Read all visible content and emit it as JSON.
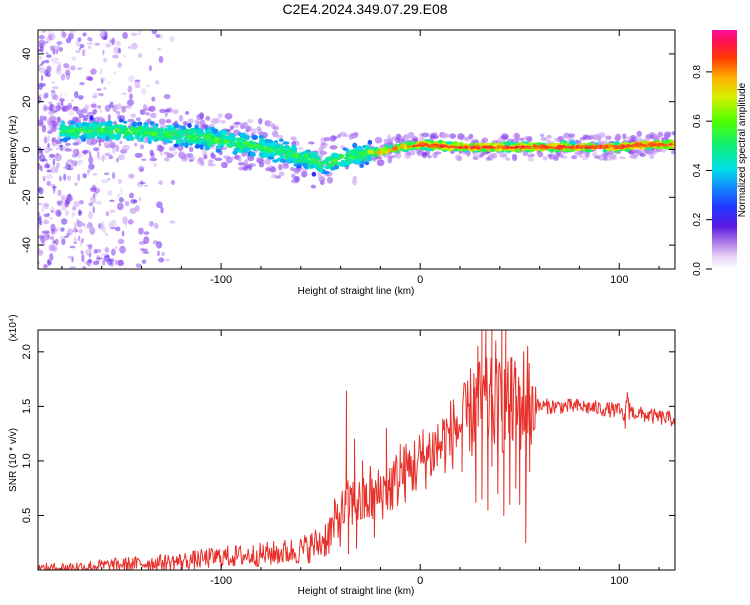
{
  "figure_title": "C2E4.2024.349.07.29.E08",
  "colors": {
    "snr_line": "#e8302a",
    "axis": "#000000"
  },
  "chart_data": [
    {
      "type": "heatmap",
      "name": "spectrogram",
      "xlabel": "Height of straight line (km)",
      "ylabel": "Frequency (Hz)",
      "xlim": [
        -192,
        128
      ],
      "ylim": [
        -50,
        50
      ],
      "xticks": [
        -100,
        0,
        100
      ],
      "yticks": [
        -40,
        -20,
        0,
        20,
        40
      ],
      "ridge": {
        "x": [
          -180,
          -160,
          -140,
          -120,
          -100,
          -80,
          -60,
          -50,
          -40,
          -30,
          -20,
          -10,
          0,
          20,
          40,
          60,
          80,
          100,
          110,
          128
        ],
        "freq": [
          8,
          8,
          7,
          6,
          4,
          1,
          -3,
          -6,
          -4,
          -2,
          -1,
          1,
          2,
          1,
          1,
          1,
          1,
          1,
          2,
          2
        ]
      },
      "colorbar": {
        "label": "Normalized spectral amplitude",
        "ticks": [
          "0.0",
          "0.2",
          "0.4",
          "0.6",
          "0.8"
        ],
        "tick_values": [
          0.0,
          0.2,
          0.4,
          0.6,
          0.8
        ],
        "range": [
          0.0,
          0.97
        ]
      }
    },
    {
      "type": "line",
      "name": "snr",
      "xlabel": "Height of straight line (km)",
      "ylabel": "SNR (10 * v/v)",
      "scale_label": "(x10⁴)",
      "xlim": [
        -192,
        128
      ],
      "ylim": [
        0,
        2.2
      ],
      "xticks": [
        -100,
        0,
        100
      ],
      "yticks": [
        0.5,
        1.0,
        1.5,
        2.0
      ],
      "ytick_labels": [
        "0.5",
        "1.0",
        "1.5",
        "2.0"
      ],
      "envelope": {
        "x": [
          -192,
          -170,
          -150,
          -120,
          -100,
          -80,
          -60,
          -50,
          -45,
          -40,
          -35,
          -30,
          -20,
          -10,
          0,
          10,
          20,
          25,
          30,
          35,
          40,
          45,
          50,
          55,
          60,
          70,
          80,
          90,
          100,
          103,
          104,
          106,
          110,
          120,
          128
        ],
        "y": [
          0.01,
          0.03,
          0.05,
          0.08,
          0.12,
          0.14,
          0.18,
          0.25,
          0.35,
          0.5,
          0.62,
          0.6,
          0.7,
          0.85,
          1.0,
          1.15,
          1.32,
          1.42,
          1.5,
          1.5,
          1.5,
          1.5,
          1.52,
          1.52,
          1.5,
          1.5,
          1.5,
          1.48,
          1.46,
          1.4,
          1.6,
          1.45,
          1.43,
          1.4,
          1.38
        ]
      },
      "spikes": [
        {
          "x": -37,
          "y": 1.64
        },
        {
          "x": -33,
          "y": 1.2
        },
        {
          "x": -29,
          "y": 1.0
        },
        {
          "x": -25,
          "y": 0.95
        },
        {
          "x": -17,
          "y": 1.3
        },
        {
          "x": -10,
          "y": 1.15
        },
        {
          "x": -8,
          "y": 1.1
        },
        {
          "x": 18,
          "y": 1.38
        },
        {
          "x": 23,
          "y": 1.55
        },
        {
          "x": 27,
          "y": 1.8
        },
        {
          "x": 29,
          "y": 2.05
        },
        {
          "x": 31,
          "y": 2.2
        },
        {
          "x": 33,
          "y": 2.2
        },
        {
          "x": 36,
          "y": 2.2
        },
        {
          "x": 38,
          "y": 2.1
        },
        {
          "x": 41,
          "y": 2.2
        },
        {
          "x": 43,
          "y": 2.2
        },
        {
          "x": 46,
          "y": 1.95
        },
        {
          "x": 48,
          "y": 1.85
        },
        {
          "x": 52,
          "y": 2.0
        },
        {
          "x": 54,
          "y": 2.05
        },
        {
          "x": 104,
          "y": 1.63
        }
      ],
      "drops": [
        {
          "x": 28,
          "y": 0.62
        },
        {
          "x": 31,
          "y": 0.65
        },
        {
          "x": 34,
          "y": 0.55
        },
        {
          "x": 36,
          "y": 0.95
        },
        {
          "x": 39,
          "y": 0.7
        },
        {
          "x": 42,
          "y": 0.5
        },
        {
          "x": 45,
          "y": 0.6
        },
        {
          "x": 48,
          "y": 0.75
        },
        {
          "x": 50,
          "y": 0.6
        },
        {
          "x": 53,
          "y": 0.25
        },
        {
          "x": 55,
          "y": 0.9
        },
        {
          "x": 105,
          "y": 1.38
        },
        {
          "x": -36,
          "y": 0.15
        },
        {
          "x": -32,
          "y": 0.2
        },
        {
          "x": -23,
          "y": 0.3
        },
        {
          "x": -15,
          "y": 0.55
        },
        {
          "x": 21,
          "y": 0.9
        },
        {
          "x": 103,
          "y": 1.3
        },
        {
          "x": 108,
          "y": 1.4
        }
      ]
    }
  ]
}
